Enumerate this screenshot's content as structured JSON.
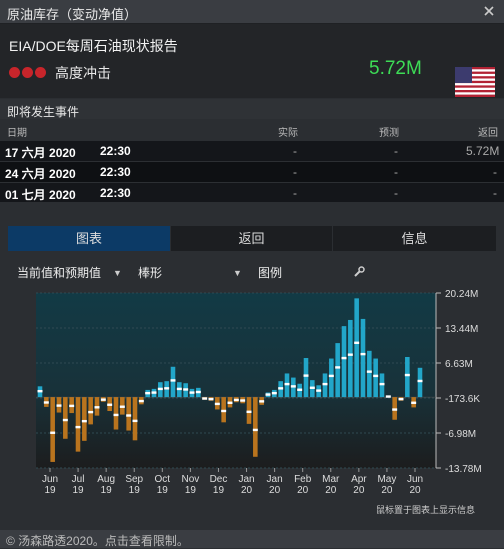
{
  "window": {
    "title": "原油库存（变动净值）"
  },
  "event": {
    "title": "EIA/DOE每周石油现状报告",
    "impact": "高度冲击",
    "value": "5.72M",
    "value_color": "#3ddc56",
    "country_flag": "us-flag-icon"
  },
  "upcoming": {
    "label": "即将发生事件",
    "headers": {
      "date": "日期",
      "actual": "实际",
      "forecast": "预测",
      "previous": "返回"
    },
    "rows": [
      {
        "date": "17 六月 2020",
        "time": "22:30",
        "actual": "-",
        "forecast": "-",
        "previous": "5.72M"
      },
      {
        "date": "24 六月 2020",
        "time": "22:30",
        "actual": "-",
        "forecast": "-",
        "previous": "-"
      },
      {
        "date": "01 七月 2020",
        "time": "22:30",
        "actual": "-",
        "forecast": "-",
        "previous": "-"
      }
    ]
  },
  "tabs": [
    {
      "label": "图表"
    },
    {
      "label": "返回"
    },
    {
      "label": "信息"
    }
  ],
  "toolbar": {
    "mode": "当前值和预期值",
    "chart_type": "棒形",
    "legend": "图例"
  },
  "chart_note": "鼠标置于图表上显示信息",
  "footer": {
    "text": "© 汤森路透2020。点击查看限制。"
  },
  "chart_data": {
    "type": "bar",
    "y_tick_labels": [
      "20.24M",
      "13.44M",
      "6.63M",
      "-173.6K",
      "-6.98M",
      "-13.78M"
    ],
    "ylim": [
      -13.78,
      20.24
    ],
    "unit": "M",
    "x_tick_labels": [
      {
        "month": "Jun",
        "year": "19"
      },
      {
        "month": "Jul",
        "year": "19"
      },
      {
        "month": "Aug",
        "year": "19"
      },
      {
        "month": "Sep",
        "year": "19"
      },
      {
        "month": "Oct",
        "year": "19"
      },
      {
        "month": "Nov",
        "year": "19"
      },
      {
        "month": "Dec",
        "year": "19"
      },
      {
        "month": "Jan",
        "year": "20"
      },
      {
        "month": "Jan",
        "year": "20"
      },
      {
        "month": "Feb",
        "year": "20"
      },
      {
        "month": "Mar",
        "year": "20"
      },
      {
        "month": "Apr",
        "year": "20"
      },
      {
        "month": "May",
        "year": "20"
      },
      {
        "month": "Jun",
        "year": "20"
      }
    ],
    "series": [
      {
        "name": "actual",
        "color_up": "#22a6c9",
        "color_down": "#b9741e",
        "values": [
          2.1,
          -1.9,
          -12.6,
          -3.0,
          -8.1,
          -3.1,
          -10.6,
          -8.5,
          -5.3,
          -3.6,
          -0.9,
          -2.7,
          -6.3,
          -3.4,
          -6.5,
          -8.4,
          -1.4,
          1.4,
          1.6,
          2.9,
          3.1,
          5.9,
          2.9,
          2.7,
          1.6,
          1.8,
          -0.5,
          -0.7,
          -2.4,
          -4.9,
          -2.0,
          -1.0,
          -1.2,
          -5.2,
          -11.6,
          -1.5,
          0.9,
          1.4,
          3.1,
          4.6,
          3.8,
          2.6,
          7.6,
          3.3,
          2.3,
          4.6,
          7.5,
          10.5,
          13.8,
          15.0,
          19.2,
          15.2,
          9.0,
          7.5,
          4.6,
          0.2,
          -4.4,
          -0.7,
          7.8,
          -2.0,
          5.7
        ]
      }
    ]
  }
}
